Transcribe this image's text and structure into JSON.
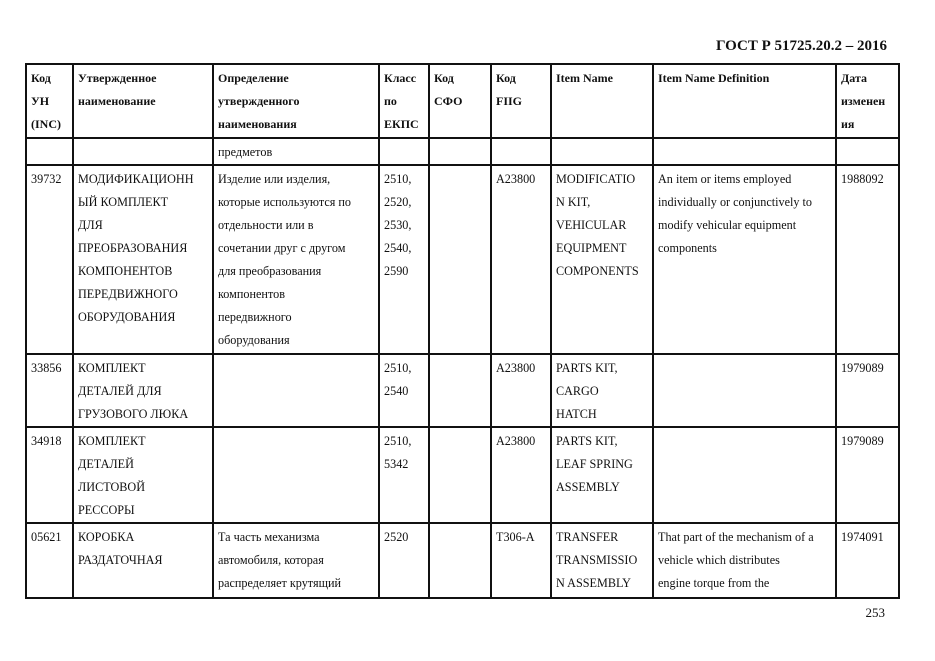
{
  "document": {
    "title": "ГОСТ Р 51725.20.2 – 2016",
    "page_number": "253"
  },
  "table": {
    "headers": [
      [
        "Код",
        "УН",
        "(INC)"
      ],
      [
        "Утвержденное",
        "наименование"
      ],
      [
        "Определение",
        "утвержденного",
        "наименования"
      ],
      [
        "Класс",
        "по",
        "ЕКПС"
      ],
      [
        "Код",
        "СФО"
      ],
      [
        "Код",
        "FIIG"
      ],
      [
        "Item Name"
      ],
      [
        "Item Name Definition"
      ],
      [
        "Дата",
        "изменен",
        "ия"
      ]
    ],
    "rows": [
      [
        [],
        [],
        [
          "предметов"
        ],
        [],
        [],
        [],
        [],
        [],
        []
      ],
      [
        [
          "39732"
        ],
        [
          "МОДИФИКАЦИОНН",
          "ЫЙ КОМПЛЕКТ",
          "ДЛЯ",
          "ПРЕОБРАЗОВАНИЯ",
          "КОМПОНЕНТОВ",
          "ПЕРЕДВИЖНОГО",
          "ОБОРУДОВАНИЯ"
        ],
        [
          "Изделие или изделия,",
          "которые используются по",
          "отдельности или в",
          "сочетании друг с другом",
          "для преобразования",
          "компонентов",
          "передвижного",
          "оборудования"
        ],
        [
          "2510,",
          "2520,",
          "2530,",
          "2540,",
          "2590"
        ],
        [],
        [
          "A23800"
        ],
        [
          "MODIFICATIO",
          "N KIT,",
          "VEHICULAR",
          "EQUIPMENT",
          "COMPONENTS"
        ],
        [
          "An item or items employed",
          "individually or conjunctively to",
          "modify vehicular equipment",
          "components"
        ],
        [
          "1988092"
        ]
      ],
      [
        [
          "33856"
        ],
        [
          "КОМПЛЕКТ",
          "ДЕТАЛЕЙ ДЛЯ",
          "ГРУЗОВОГО ЛЮКА"
        ],
        [],
        [
          "2510,",
          "2540"
        ],
        [],
        [
          "A23800"
        ],
        [
          "PARTS KIT,",
          "CARGO",
          "HATCH"
        ],
        [],
        [
          "1979089"
        ]
      ],
      [
        [
          "34918"
        ],
        [
          "КОМПЛЕКТ",
          "ДЕТАЛЕЙ",
          "ЛИСТОВОЙ",
          "РЕССОРЫ"
        ],
        [],
        [
          "2510,",
          "5342"
        ],
        [],
        [
          "A23800"
        ],
        [
          "PARTS KIT,",
          "LEAF SPRING",
          "ASSEMBLY"
        ],
        [],
        [
          "1979089"
        ]
      ],
      [
        [
          "05621"
        ],
        [
          "КОРОБКА",
          "РАЗДАТОЧНАЯ"
        ],
        [
          "Та часть механизма",
          "автомобиля, которая",
          "распределяет крутящий"
        ],
        [
          "2520"
        ],
        [],
        [
          "T306-A"
        ],
        [
          "TRANSFER",
          "TRANSMISSIO",
          "N ASSEMBLY"
        ],
        [
          "That part of the mechanism of a",
          "vehicle which distributes",
          "engine torque from the"
        ],
        [
          "1974091"
        ]
      ]
    ]
  }
}
